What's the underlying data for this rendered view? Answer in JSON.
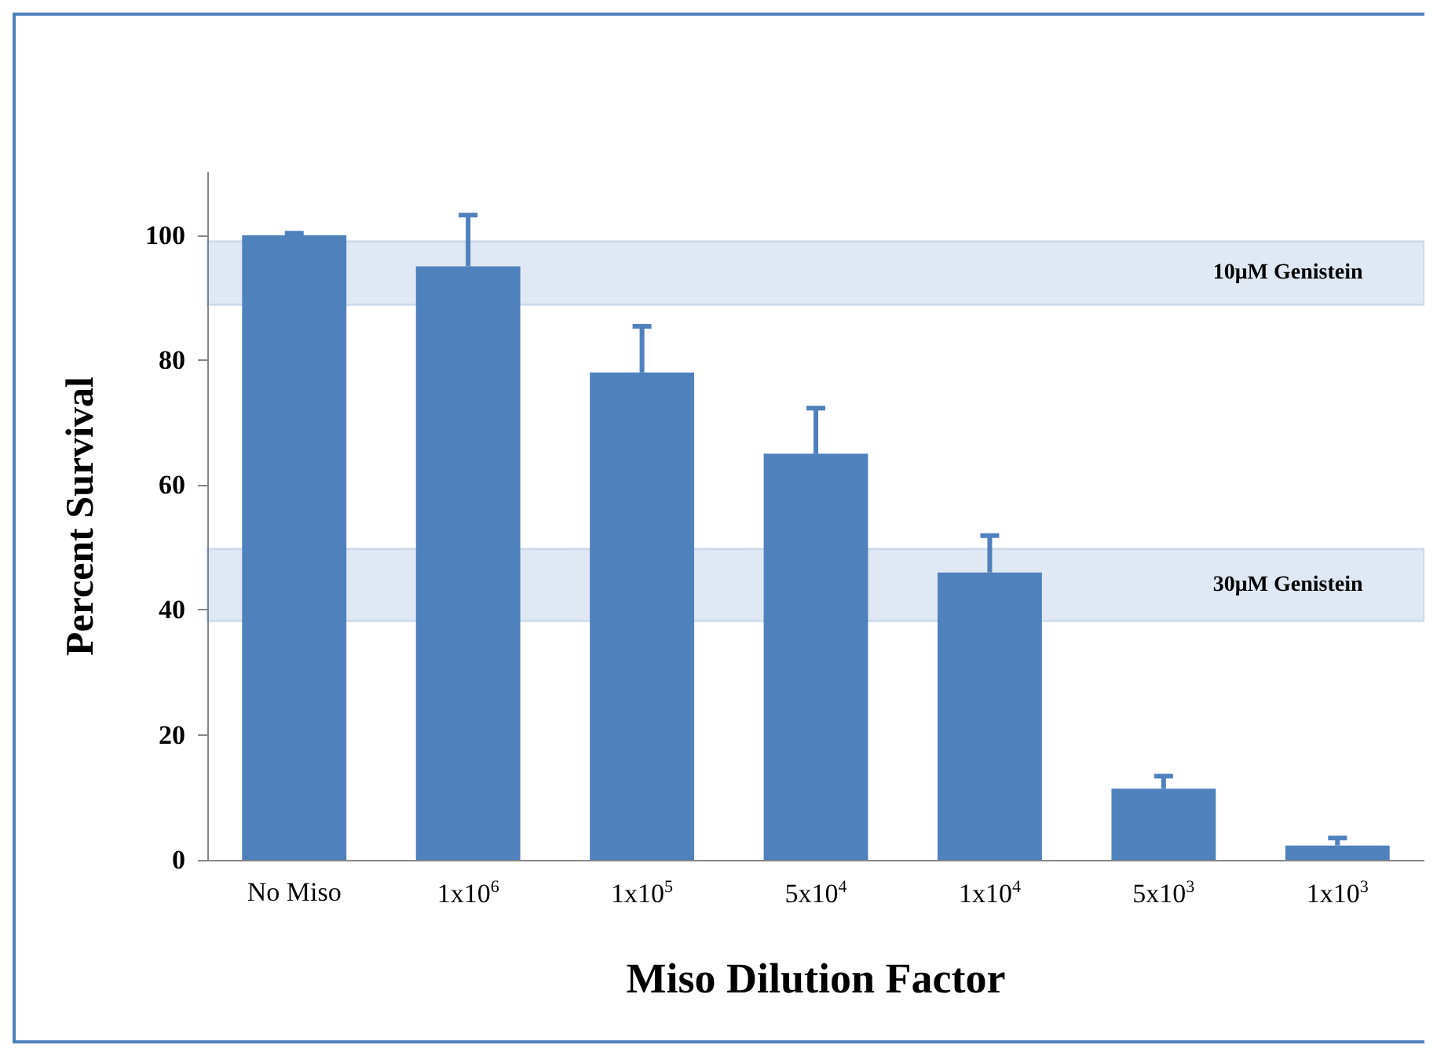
{
  "chart_data": {
    "type": "bar",
    "xlabel": "Miso Dilution Factor",
    "ylabel": "Percent Survival",
    "categories": [
      "No Miso",
      "1x10$^{6}$",
      "1x10$^{5}$",
      "5x10$^{4}$",
      "1x10$^{4}$",
      "5x10$^{3}$",
      "1x10$^{3}$"
    ],
    "values": [
      100,
      95,
      78,
      65,
      46,
      11.4,
      2.3
    ],
    "errors": [
      [
        100,
        100.3
      ],
      [
        95,
        103.2
      ],
      [
        78,
        85.4
      ],
      [
        65,
        72.3
      ],
      [
        46,
        51.9
      ],
      [
        11.4,
        13.4
      ],
      [
        2.3,
        3.5
      ]
    ],
    "color": "#4f81bd",
    "ylim": [
      0,
      110
    ],
    "yticks": [
      0,
      20,
      40,
      60,
      80,
      100
    ],
    "grid": false,
    "bands": [
      {
        "axis": "y",
        "from": 88.8,
        "to": 99,
        "label": "10μM Genistein",
        "color": "#4f81bd"
      },
      {
        "axis": "y",
        "from": 38.2,
        "to": 49.8,
        "label": "30μM Genistein",
        "color": "#4f81bd"
      }
    ]
  }
}
